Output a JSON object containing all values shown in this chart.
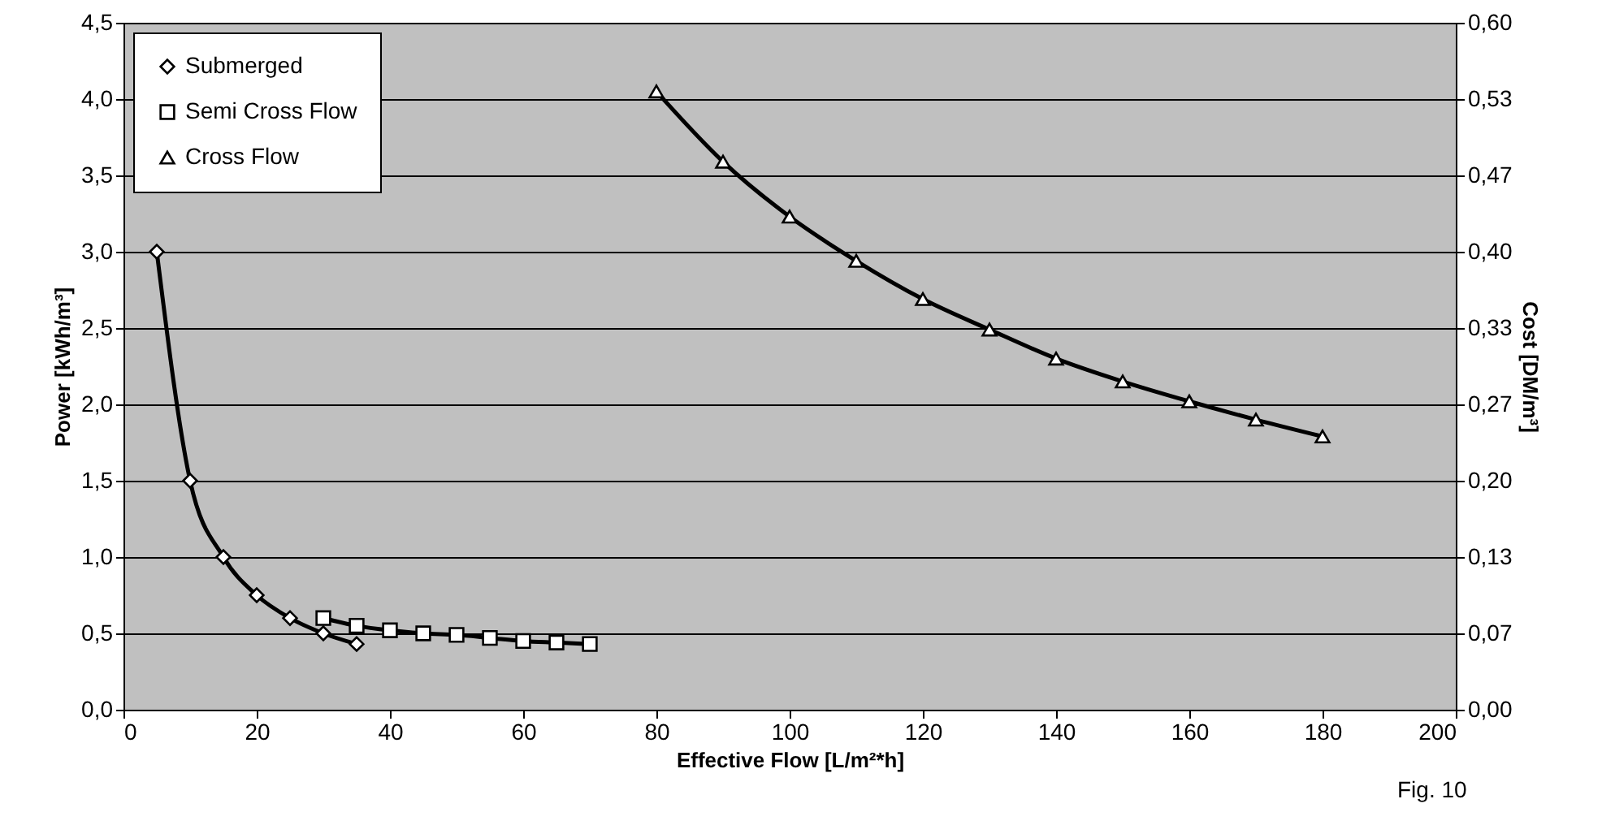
{
  "chart_data": {
    "type": "line",
    "xlabel": "Effective Flow [L/m²*h]",
    "ylabel": "Power [kWh/m³]",
    "y2label": "Cost [DM/m³]",
    "annotations": [
      "Fig. 10"
    ],
    "xlim": [
      0,
      200
    ],
    "xticks": [
      0,
      20,
      40,
      60,
      80,
      100,
      120,
      140,
      160,
      180,
      200
    ],
    "ylim": [
      0,
      4.5
    ],
    "yticks": [
      {
        "value": 0,
        "label": "0,0"
      },
      {
        "value": 0.5,
        "label": "0,5"
      },
      {
        "value": 1,
        "label": "1,0"
      },
      {
        "value": 1.5,
        "label": "1,5"
      },
      {
        "value": 2,
        "label": "2,0"
      },
      {
        "value": 2.5,
        "label": "2,5"
      },
      {
        "value": 3,
        "label": "3,0"
      },
      {
        "value": 3.5,
        "label": "3,5"
      },
      {
        "value": 4,
        "label": "4,0"
      },
      {
        "value": 4.5,
        "label": "4,5"
      }
    ],
    "y2lim": [
      0,
      0.6
    ],
    "y2ticks": [
      {
        "value": 0,
        "label": "0,00"
      },
      {
        "value": 0.0667,
        "label": "0,07"
      },
      {
        "value": 0.1333,
        "label": "0,13"
      },
      {
        "value": 0.2,
        "label": "0,20"
      },
      {
        "value": 0.2667,
        "label": "0,27"
      },
      {
        "value": 0.3333,
        "label": "0,33"
      },
      {
        "value": 0.4,
        "label": "0,40"
      },
      {
        "value": 0.4667,
        "label": "0,47"
      },
      {
        "value": 0.5333,
        "label": "0,53"
      },
      {
        "value": 0.6,
        "label": "0,60"
      }
    ],
    "grid": "y",
    "legend": "top left",
    "line_style": "solid",
    "series": [
      {
        "name": "Submerged",
        "color": "#000000",
        "marker": "diamond",
        "x": [
          5,
          10,
          15,
          20,
          25,
          30,
          35
        ],
        "values": [
          3.0,
          1.5,
          1.0,
          0.75,
          0.6,
          0.5,
          0.43
        ]
      },
      {
        "name": "Semi Cross Flow",
        "color": "#000000",
        "marker": "square",
        "x": [
          30,
          35,
          40,
          45,
          50,
          55,
          60,
          65,
          70
        ],
        "values": [
          0.6,
          0.55,
          0.52,
          0.5,
          0.49,
          0.47,
          0.45,
          0.44,
          0.43
        ]
      },
      {
        "name": "Cross Flow",
        "color": "#000000",
        "marker": "triangle",
        "x": [
          80,
          90,
          100,
          110,
          120,
          130,
          140,
          150,
          160,
          170,
          180
        ],
        "values": [
          4.05,
          3.59,
          3.23,
          2.94,
          2.69,
          2.49,
          2.3,
          2.15,
          2.02,
          1.9,
          1.79
        ]
      }
    ]
  }
}
